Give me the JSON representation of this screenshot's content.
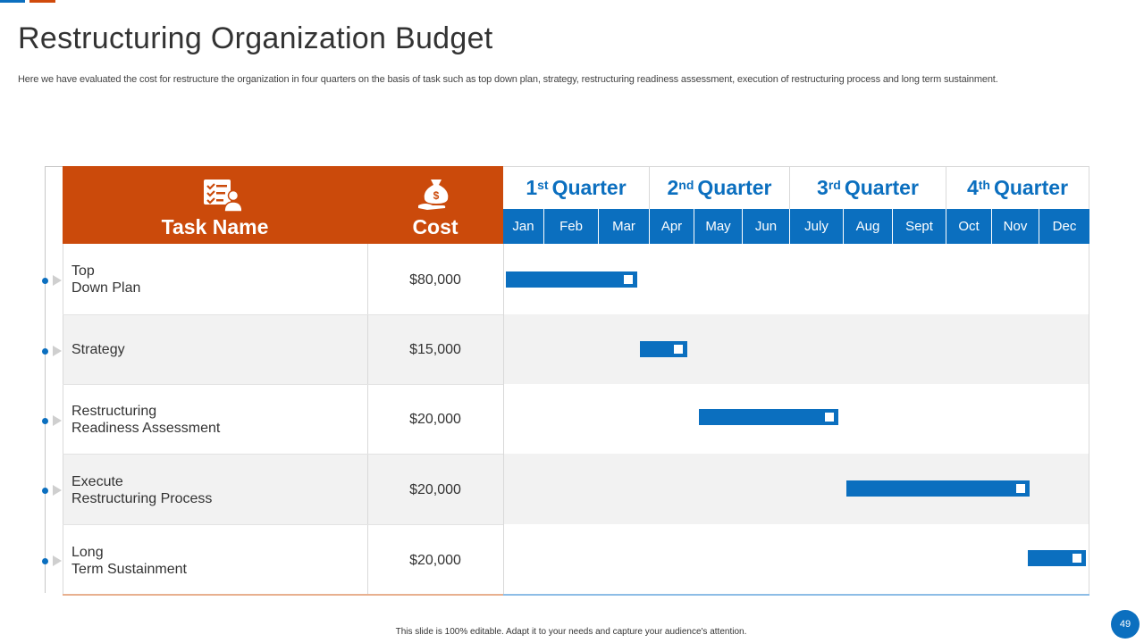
{
  "title": "Restructuring Organization Budget",
  "subtitle": "Here we have evaluated the cost for restructure the organization in four quarters on the basis of task such as top down plan, strategy,  restructuring readiness assessment, execution of restructuring process and long term sustainment.",
  "header": {
    "task_label": "Task Name",
    "cost_label": "Cost",
    "task_icon": "checklist-person-icon",
    "cost_icon": "money-bag-hand-icon"
  },
  "quarters": [
    {
      "num": "1",
      "sup": "st",
      "label": "Quarter"
    },
    {
      "num": "2",
      "sup": "nd",
      "label": "Quarter"
    },
    {
      "num": "3",
      "sup": "rd",
      "label": "Quarter"
    },
    {
      "num": "4",
      "sup": "th",
      "label": "Quarter"
    }
  ],
  "months": [
    "Jan",
    "Feb",
    "Mar",
    "Apr",
    "May",
    "Jun",
    "July",
    "Aug",
    "Sept",
    "Oct",
    "Nov",
    "Dec"
  ],
  "tasks": [
    {
      "line1": "Top",
      "line2": "Down Plan",
      "cost": "$80,000",
      "start_month": 0.0,
      "end_month": 2.75
    },
    {
      "line1": "Strategy",
      "line2": "",
      "cost": "$15,000",
      "start_month": 2.8,
      "end_month": 3.85
    },
    {
      "line1": "Restructuring",
      "line2": "Readiness Assessment",
      "cost": "$20,000",
      "start_month": 4.1,
      "end_month": 6.9
    },
    {
      "line1": "Execute",
      "line2": "Restructuring  Process",
      "cost": "$20,000",
      "start_month": 7.05,
      "end_month": 10.8
    },
    {
      "line1": "Long",
      "line2": "Term Sustainment",
      "cost": "$20,000",
      "start_month": 10.75,
      "end_month": 12.0
    }
  ],
  "footer": "This slide is 100% editable.  Adapt it to your needs and capture your audience's attention.",
  "page_number": "49",
  "colors": {
    "accent_orange": "#cb4a0b",
    "accent_blue": "#0b6fbf",
    "shade": "#f2f2f2"
  }
}
